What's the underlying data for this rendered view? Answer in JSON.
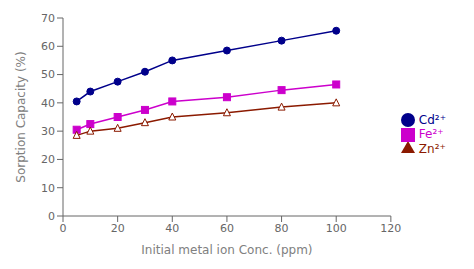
{
  "chart_data": {
    "type": "line",
    "x": [
      5,
      10,
      20,
      30,
      40,
      60,
      80,
      100
    ],
    "series": [
      {
        "name": "Cd²⁺",
        "color": "#00008B",
        "marker": "circle",
        "values": [
          40.5,
          44.0,
          47.5,
          51.0,
          55.0,
          58.5,
          62.0,
          65.5
        ]
      },
      {
        "name": "Fe²⁺",
        "color": "#CC00CC",
        "marker": "square",
        "values": [
          30.5,
          32.5,
          35.0,
          37.5,
          40.5,
          42.0,
          44.5,
          46.5
        ]
      },
      {
        "name": "Zn²⁺",
        "color": "#8B1A00",
        "marker": "open-triangle",
        "values": [
          28.5,
          30.0,
          31.0,
          33.0,
          35.0,
          36.5,
          38.5,
          40.0
        ]
      }
    ],
    "x_label": "Initial metal ion Conc. (ppm)",
    "y_label": "Sorption Capacity (%)",
    "xlim": [
      0,
      120
    ],
    "ylim": [
      0,
      70
    ],
    "xticks": [
      0,
      20,
      40,
      60,
      80,
      100,
      120
    ],
    "yticks": [
      0,
      10,
      20,
      30,
      40,
      50,
      60,
      70
    ],
    "grid": false,
    "legend": "right"
  }
}
